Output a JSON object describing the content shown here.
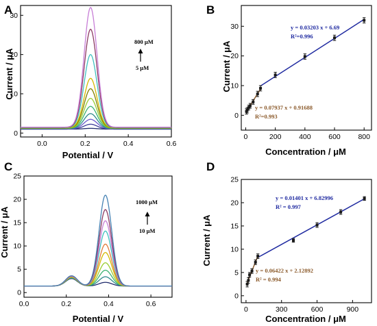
{
  "chart_data": [
    {
      "id": "A",
      "panel_label": "A",
      "type": "line",
      "xlabel": "Potential / V",
      "ylabel": "Current / μA",
      "xlim": [
        -0.1,
        0.6
      ],
      "ylim": [
        -1,
        32.5
      ],
      "xticks": [
        0.0,
        0.2,
        0.4,
        0.6
      ],
      "xtick_labels": [
        "0.0",
        "0.2",
        "0.4",
        "0.6"
      ],
      "yticks": [
        0,
        10,
        20,
        30
      ],
      "ytick_labels": [
        "0",
        "10",
        "20",
        "30"
      ],
      "grid": false,
      "annotation": {
        "top": "800 μM",
        "bottom": "5 μM",
        "arrow": "up"
      },
      "series": [
        {
          "base": 1.0,
          "peaks": [
            [
              0.225,
              0.2,
              0.03
            ]
          ],
          "color": "#1f2a6b"
        },
        {
          "base": 1.05,
          "peaks": [
            [
              0.225,
              1.2,
              0.03
            ]
          ],
          "color": "#3d3d99"
        },
        {
          "base": 1.1,
          "peaks": [
            [
              0.225,
              2.4,
              0.03
            ]
          ],
          "color": "#6a5acd"
        },
        {
          "base": 1.15,
          "peaks": [
            [
              0.225,
              3.8,
              0.03
            ]
          ],
          "color": "#2e8b8b"
        },
        {
          "base": 1.2,
          "peaks": [
            [
              0.225,
              5.6,
              0.03
            ]
          ],
          "color": "#3cb371"
        },
        {
          "base": 1.25,
          "peaks": [
            [
              0.225,
              7.6,
              0.03
            ]
          ],
          "color": "#9acd32"
        },
        {
          "base": 1.3,
          "peaks": [
            [
              0.225,
              10.0,
              0.03
            ]
          ],
          "color": "#808000"
        },
        {
          "base": 1.35,
          "peaks": [
            [
              0.225,
              12.6,
              0.03
            ]
          ],
          "color": "#d4b800"
        },
        {
          "base": 1.4,
          "peaks": [
            [
              0.225,
              18.6,
              0.03
            ]
          ],
          "color": "#40c0c0"
        },
        {
          "base": 1.45,
          "peaks": [
            [
              0.225,
              25.0,
              0.03
            ]
          ],
          "color": "#8b3a62"
        },
        {
          "base": 1.5,
          "peaks": [
            [
              0.225,
              30.5,
              0.03
            ]
          ],
          "color": "#c77dd6"
        }
      ]
    },
    {
      "id": "B",
      "panel_label": "B",
      "type": "scatter",
      "xlabel": "Concentration / μM",
      "ylabel": "Current / μA",
      "xlim": [
        -30,
        850
      ],
      "ylim": [
        -5,
        37
      ],
      "xticks": [
        0,
        200,
        400,
        600,
        800
      ],
      "xtick_labels": [
        "0",
        "200",
        "400",
        "600",
        "800"
      ],
      "yticks": [
        0,
        10,
        20,
        30
      ],
      "ytick_labels": [
        "0",
        "10",
        "20",
        "30"
      ],
      "grid": false,
      "points": [
        {
          "x": 5,
          "y": 1.3,
          "err": 0.9
        },
        {
          "x": 10,
          "y": 1.7,
          "err": 0.9
        },
        {
          "x": 20,
          "y": 2.6,
          "err": 0.8
        },
        {
          "x": 30,
          "y": 3.2,
          "err": 0.8
        },
        {
          "x": 50,
          "y": 4.5,
          "err": 0.8
        },
        {
          "x": 80,
          "y": 7.2,
          "err": 0.9
        },
        {
          "x": 100,
          "y": 9.1,
          "err": 0.9
        },
        {
          "x": 200,
          "y": 13.6,
          "err": 0.9
        },
        {
          "x": 400,
          "y": 19.8,
          "err": 0.9
        },
        {
          "x": 600,
          "y": 26.1,
          "err": 0.9
        },
        {
          "x": 800,
          "y": 32.0,
          "err": 0.9
        }
      ],
      "fits": [
        {
          "slope": 0.07937,
          "intercept": 0.91688,
          "x_range": [
            5,
            100
          ],
          "color": "#8b5a2b",
          "equation": "y = 0.07937 x + 0.91688",
          "r2": "R²=0.993"
        },
        {
          "slope": 0.03203,
          "intercept": 6.69,
          "x_range": [
            100,
            800
          ],
          "color": "#1f2aa0",
          "equation": "y = 0.03203 x + 6.69",
          "r2": "R²=0.996"
        }
      ],
      "marker_color": "#1a1a1a",
      "legend_position": "top-right (high-range fit), lower-center (low-range fit)"
    },
    {
      "id": "C",
      "panel_label": "C",
      "type": "line",
      "xlabel": "Potential / V",
      "ylabel": "Current / μA",
      "xlim": [
        0.0,
        0.7
      ],
      "ylim": [
        -1,
        25
      ],
      "xticks": [
        0.0,
        0.2,
        0.4,
        0.6
      ],
      "xtick_labels": [
        "0.0",
        "0.2",
        "0.4",
        "0.6"
      ],
      "yticks": [
        0,
        5,
        10,
        15,
        20,
        25
      ],
      "ytick_labels": [
        "0",
        "5",
        "10",
        "15",
        "20",
        "25"
      ],
      "grid": false,
      "annotation": {
        "top": "1000 μM",
        "bottom": "10 μM",
        "arrow": "up"
      },
      "series": [
        {
          "base": 1.4,
          "peaks": [
            [
              0.225,
              1.6,
              0.028
            ],
            [
              0.385,
              0.8,
              0.03
            ]
          ],
          "color": "#1f2a6b"
        },
        {
          "base": 1.4,
          "peaks": [
            [
              0.225,
              1.7,
              0.028
            ],
            [
              0.385,
              2.0,
              0.03
            ]
          ],
          "color": "#2e8b8b"
        },
        {
          "base": 1.4,
          "peaks": [
            [
              0.225,
              1.8,
              0.028
            ],
            [
              0.385,
              3.4,
              0.03
            ]
          ],
          "color": "#3cb371"
        },
        {
          "base": 1.4,
          "peaks": [
            [
              0.225,
              1.9,
              0.028
            ],
            [
              0.385,
              5.0,
              0.03
            ]
          ],
          "color": "#9acd32"
        },
        {
          "base": 1.4,
          "peaks": [
            [
              0.225,
              1.9,
              0.028
            ],
            [
              0.385,
              7.2,
              0.03
            ]
          ],
          "color": "#d4b800"
        },
        {
          "base": 1.4,
          "peaks": [
            [
              0.225,
              2.0,
              0.028
            ],
            [
              0.385,
              9.0,
              0.03
            ]
          ],
          "color": "#e07b39"
        },
        {
          "base": 1.4,
          "peaks": [
            [
              0.225,
              2.1,
              0.028
            ],
            [
              0.385,
              11.8,
              0.03
            ]
          ],
          "color": "#40c0c0"
        },
        {
          "base": 1.4,
          "peaks": [
            [
              0.225,
              2.1,
              0.028
            ],
            [
              0.385,
              14.0,
              0.03
            ]
          ],
          "color": "#c77dd6"
        },
        {
          "base": 1.4,
          "peaks": [
            [
              0.225,
              2.2,
              0.028
            ],
            [
              0.385,
              16.4,
              0.03
            ]
          ],
          "color": "#8b3a62"
        },
        {
          "base": 1.4,
          "peaks": [
            [
              0.225,
              2.2,
              0.028
            ],
            [
              0.385,
              19.5,
              0.03
            ]
          ],
          "color": "#4682b4"
        }
      ]
    },
    {
      "id": "D",
      "panel_label": "D",
      "type": "scatter",
      "xlabel": "Concentration / μM",
      "ylabel": "Current / μA",
      "xlim": [
        -40,
        1060
      ],
      "ylim": [
        -1.5,
        25
      ],
      "xticks": [
        0,
        300,
        600,
        900
      ],
      "xtick_labels": [
        "0",
        "300",
        "600",
        "900"
      ],
      "yticks": [
        0,
        5,
        10,
        15,
        20,
        25
      ],
      "ytick_labels": [
        "0",
        "5",
        "10",
        "15",
        "20",
        "25"
      ],
      "grid": false,
      "points": [
        {
          "x": 10,
          "y": 2.5,
          "err": 0.6
        },
        {
          "x": 20,
          "y": 3.3,
          "err": 0.6
        },
        {
          "x": 30,
          "y": 4.5,
          "err": 0.5
        },
        {
          "x": 50,
          "y": 5.3,
          "err": 0.5
        },
        {
          "x": 80,
          "y": 7.2,
          "err": 0.5
        },
        {
          "x": 100,
          "y": 8.5,
          "err": 0.5
        },
        {
          "x": 400,
          "y": 11.9,
          "err": 0.4
        },
        {
          "x": 600,
          "y": 15.2,
          "err": 0.5
        },
        {
          "x": 800,
          "y": 18.0,
          "err": 0.5
        },
        {
          "x": 1000,
          "y": 20.9,
          "err": 0.4
        }
      ],
      "fits": [
        {
          "slope": 0.06422,
          "intercept": 2.12892,
          "x_range": [
            10,
            100
          ],
          "color": "#8b5a2b",
          "equation": "y = 0.06422 x + 2.12892",
          "r2": "R² = 0.994"
        },
        {
          "slope": 0.01401,
          "intercept": 6.82996,
          "x_range": [
            100,
            1000
          ],
          "color": "#1f2aa0",
          "equation": "y = 0.01401 x + 6.82996",
          "r2": "R² = 0.997"
        }
      ],
      "marker_color": "#1a1a1a",
      "legend_position": "top-left (high-range fit), lower-center (low-range fit)"
    }
  ]
}
